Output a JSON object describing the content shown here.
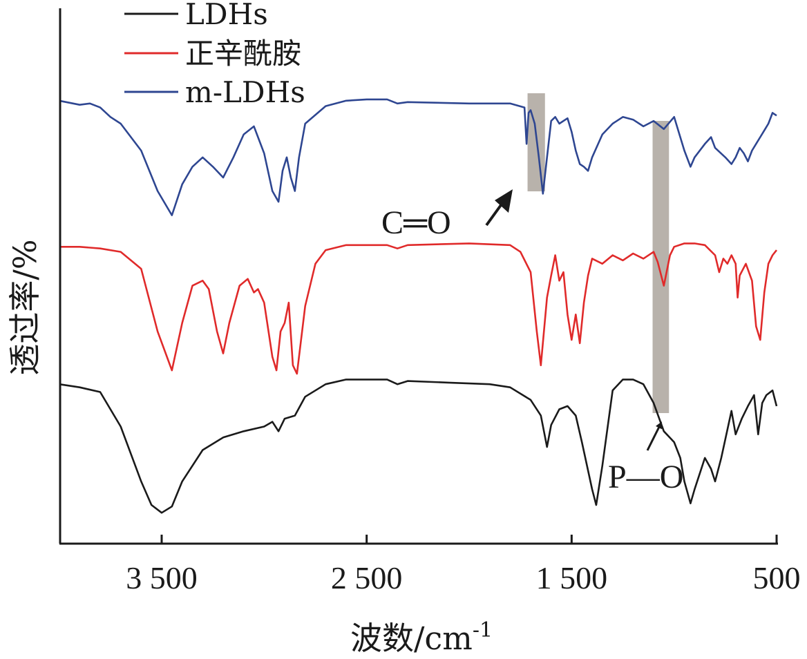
{
  "chart_data": {
    "type": "line",
    "title": "",
    "xlabel": "波数/cm",
    "xlabel_superscript": "-1",
    "ylabel": "透过率/%",
    "xlim": [
      4000,
      500
    ],
    "x_reversed": true,
    "x_ticks": [
      3500,
      2500,
      1500,
      500
    ],
    "x_tick_labels": [
      "3 500",
      "2 500",
      "1 500",
      "500"
    ],
    "y_ticks_shown": false,
    "grid": false,
    "legend_position": "top-left",
    "series": [
      {
        "name": "LDHs",
        "color": "#1a1a1a",
        "points": [
          [
            4000,
            0.92
          ],
          [
            3900,
            0.9
          ],
          [
            3800,
            0.87
          ],
          [
            3700,
            0.65
          ],
          [
            3600,
            0.3
          ],
          [
            3550,
            0.15
          ],
          [
            3500,
            0.1
          ],
          [
            3450,
            0.14
          ],
          [
            3400,
            0.3
          ],
          [
            3300,
            0.5
          ],
          [
            3200,
            0.58
          ],
          [
            3100,
            0.62
          ],
          [
            3000,
            0.65
          ],
          [
            2960,
            0.68
          ],
          [
            2930,
            0.62
          ],
          [
            2900,
            0.7
          ],
          [
            2850,
            0.72
          ],
          [
            2800,
            0.84
          ],
          [
            2700,
            0.92
          ],
          [
            2600,
            0.95
          ],
          [
            2500,
            0.95
          ],
          [
            2400,
            0.95
          ],
          [
            2350,
            0.92
          ],
          [
            2300,
            0.94
          ],
          [
            2100,
            0.93
          ],
          [
            1900,
            0.92
          ],
          [
            1800,
            0.9
          ],
          [
            1700,
            0.82
          ],
          [
            1650,
            0.72
          ],
          [
            1620,
            0.52
          ],
          [
            1600,
            0.66
          ],
          [
            1560,
            0.76
          ],
          [
            1520,
            0.78
          ],
          [
            1480,
            0.72
          ],
          [
            1450,
            0.55
          ],
          [
            1400,
            0.25
          ],
          [
            1380,
            0.15
          ],
          [
            1350,
            0.4
          ],
          [
            1300,
            0.88
          ],
          [
            1250,
            0.95
          ],
          [
            1200,
            0.95
          ],
          [
            1150,
            0.92
          ],
          [
            1100,
            0.8
          ],
          [
            1050,
            0.62
          ],
          [
            1000,
            0.55
          ],
          [
            970,
            0.45
          ],
          [
            950,
            0.3
          ],
          [
            920,
            0.16
          ],
          [
            900,
            0.25
          ],
          [
            850,
            0.45
          ],
          [
            820,
            0.38
          ],
          [
            800,
            0.3
          ],
          [
            770,
            0.45
          ],
          [
            720,
            0.75
          ],
          [
            700,
            0.6
          ],
          [
            670,
            0.7
          ],
          [
            640,
            0.78
          ],
          [
            610,
            0.85
          ],
          [
            590,
            0.6
          ],
          [
            570,
            0.8
          ],
          [
            550,
            0.85
          ],
          [
            520,
            0.88
          ],
          [
            500,
            0.78
          ]
        ]
      },
      {
        "name": "正辛酰胺",
        "color": "#e02a2a",
        "points": [
          [
            4000,
            0.95
          ],
          [
            3900,
            0.95
          ],
          [
            3800,
            0.94
          ],
          [
            3700,
            0.92
          ],
          [
            3600,
            0.82
          ],
          [
            3520,
            0.45
          ],
          [
            3450,
            0.22
          ],
          [
            3400,
            0.5
          ],
          [
            3350,
            0.72
          ],
          [
            3300,
            0.75
          ],
          [
            3270,
            0.7
          ],
          [
            3230,
            0.45
          ],
          [
            3200,
            0.32
          ],
          [
            3170,
            0.5
          ],
          [
            3120,
            0.72
          ],
          [
            3080,
            0.76
          ],
          [
            3050,
            0.68
          ],
          [
            3030,
            0.7
          ],
          [
            3000,
            0.62
          ],
          [
            2960,
            0.3
          ],
          [
            2940,
            0.22
          ],
          [
            2920,
            0.45
          ],
          [
            2900,
            0.5
          ],
          [
            2880,
            0.62
          ],
          [
            2860,
            0.25
          ],
          [
            2840,
            0.2
          ],
          [
            2800,
            0.6
          ],
          [
            2750,
            0.85
          ],
          [
            2700,
            0.93
          ],
          [
            2600,
            0.96
          ],
          [
            2500,
            0.96
          ],
          [
            2400,
            0.96
          ],
          [
            2350,
            0.94
          ],
          [
            2300,
            0.96
          ],
          [
            2000,
            0.97
          ],
          [
            1800,
            0.96
          ],
          [
            1750,
            0.92
          ],
          [
            1700,
            0.8
          ],
          [
            1670,
            0.45
          ],
          [
            1650,
            0.25
          ],
          [
            1620,
            0.65
          ],
          [
            1600,
            0.78
          ],
          [
            1580,
            0.9
          ],
          [
            1560,
            0.75
          ],
          [
            1540,
            0.8
          ],
          [
            1520,
            0.55
          ],
          [
            1500,
            0.4
          ],
          [
            1480,
            0.55
          ],
          [
            1460,
            0.38
          ],
          [
            1440,
            0.62
          ],
          [
            1420,
            0.78
          ],
          [
            1400,
            0.88
          ],
          [
            1350,
            0.85
          ],
          [
            1300,
            0.9
          ],
          [
            1250,
            0.87
          ],
          [
            1200,
            0.91
          ],
          [
            1150,
            0.88
          ],
          [
            1100,
            0.92
          ],
          [
            1080,
            0.86
          ],
          [
            1050,
            0.72
          ],
          [
            1020,
            0.9
          ],
          [
            1000,
            0.95
          ],
          [
            950,
            0.97
          ],
          [
            900,
            0.97
          ],
          [
            850,
            0.96
          ],
          [
            800,
            0.9
          ],
          [
            780,
            0.8
          ],
          [
            760,
            0.88
          ],
          [
            740,
            0.85
          ],
          [
            720,
            0.9
          ],
          [
            700,
            0.85
          ],
          [
            690,
            0.65
          ],
          [
            680,
            0.78
          ],
          [
            650,
            0.85
          ],
          [
            620,
            0.75
          ],
          [
            600,
            0.48
          ],
          [
            580,
            0.4
          ],
          [
            560,
            0.68
          ],
          [
            540,
            0.85
          ],
          [
            520,
            0.9
          ],
          [
            500,
            0.93
          ]
        ]
      },
      {
        "name": "m-LDHs",
        "color": "#2e4691",
        "points": [
          [
            4000,
            0.97
          ],
          [
            3900,
            0.94
          ],
          [
            3850,
            0.95
          ],
          [
            3800,
            0.92
          ],
          [
            3750,
            0.85
          ],
          [
            3700,
            0.8
          ],
          [
            3600,
            0.6
          ],
          [
            3520,
            0.3
          ],
          [
            3450,
            0.12
          ],
          [
            3400,
            0.35
          ],
          [
            3350,
            0.48
          ],
          [
            3300,
            0.55
          ],
          [
            3250,
            0.48
          ],
          [
            3200,
            0.4
          ],
          [
            3150,
            0.55
          ],
          [
            3100,
            0.72
          ],
          [
            3050,
            0.78
          ],
          [
            3030,
            0.7
          ],
          [
            3000,
            0.58
          ],
          [
            2960,
            0.3
          ],
          [
            2930,
            0.22
          ],
          [
            2910,
            0.45
          ],
          [
            2890,
            0.55
          ],
          [
            2870,
            0.4
          ],
          [
            2850,
            0.3
          ],
          [
            2830,
            0.55
          ],
          [
            2800,
            0.8
          ],
          [
            2700,
            0.93
          ],
          [
            2600,
            0.97
          ],
          [
            2500,
            0.98
          ],
          [
            2400,
            0.98
          ],
          [
            2350,
            0.95
          ],
          [
            2300,
            0.96
          ],
          [
            2000,
            0.95
          ],
          [
            1800,
            0.95
          ],
          [
            1730,
            0.92
          ],
          [
            1720,
            0.65
          ],
          [
            1710,
            0.88
          ],
          [
            1700,
            0.9
          ],
          [
            1680,
            0.8
          ],
          [
            1660,
            0.55
          ],
          [
            1640,
            0.28
          ],
          [
            1620,
            0.55
          ],
          [
            1600,
            0.82
          ],
          [
            1580,
            0.85
          ],
          [
            1560,
            0.8
          ],
          [
            1520,
            0.84
          ],
          [
            1500,
            0.74
          ],
          [
            1480,
            0.6
          ],
          [
            1460,
            0.5
          ],
          [
            1440,
            0.48
          ],
          [
            1420,
            0.45
          ],
          [
            1400,
            0.55
          ],
          [
            1350,
            0.72
          ],
          [
            1300,
            0.8
          ],
          [
            1250,
            0.85
          ],
          [
            1200,
            0.83
          ],
          [
            1150,
            0.78
          ],
          [
            1100,
            0.82
          ],
          [
            1050,
            0.76
          ],
          [
            1000,
            0.85
          ],
          [
            980,
            0.75
          ],
          [
            950,
            0.6
          ],
          [
            920,
            0.48
          ],
          [
            900,
            0.55
          ],
          [
            850,
            0.65
          ],
          [
            820,
            0.7
          ],
          [
            800,
            0.62
          ],
          [
            750,
            0.55
          ],
          [
            720,
            0.5
          ],
          [
            700,
            0.55
          ],
          [
            680,
            0.62
          ],
          [
            660,
            0.58
          ],
          [
            640,
            0.52
          ],
          [
            620,
            0.6
          ],
          [
            600,
            0.65
          ],
          [
            580,
            0.7
          ],
          [
            560,
            0.75
          ],
          [
            540,
            0.8
          ],
          [
            520,
            0.88
          ],
          [
            500,
            0.86
          ]
        ]
      }
    ],
    "annotations": [
      {
        "text": "C═O",
        "band_x": [
          1715,
          1630
        ],
        "arrow": true
      },
      {
        "text": "P—O",
        "band_x": [
          1105,
          1025
        ],
        "arrow": true
      }
    ]
  }
}
